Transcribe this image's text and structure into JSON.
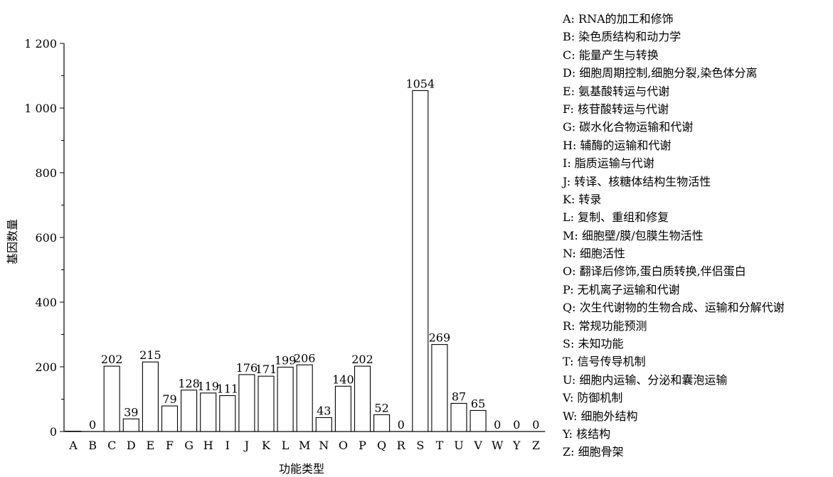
{
  "chart_data": {
    "type": "bar",
    "xlabel": "功能类型",
    "ylabel": "基因数量",
    "ylim": [
      0,
      1200
    ],
    "yticks": [
      {
        "value": 0,
        "label": "0"
      },
      {
        "value": 200,
        "label": "200"
      },
      {
        "value": 400,
        "label": "400"
      },
      {
        "value": 600,
        "label": "600"
      },
      {
        "value": 800,
        "label": "800"
      },
      {
        "value": 1000,
        "label": "1 000"
      },
      {
        "value": 1200,
        "label": "1 200"
      }
    ],
    "categories": [
      "A",
      "B",
      "C",
      "D",
      "E",
      "F",
      "G",
      "H",
      "I",
      "J",
      "K",
      "L",
      "M",
      "N",
      "O",
      "P",
      "Q",
      "R",
      "S",
      "T",
      "U",
      "V",
      "W",
      "Y",
      "Z"
    ],
    "values": [
      1,
      0,
      202,
      39,
      215,
      79,
      128,
      119,
      111,
      176,
      171,
      199,
      206,
      43,
      140,
      202,
      52,
      0,
      1054,
      269,
      87,
      65,
      0,
      0,
      0
    ],
    "data_labels": [
      "",
      "0",
      "202",
      "39",
      "215",
      "79",
      "128",
      "119",
      "111",
      "176",
      "171",
      "199",
      "206",
      "43",
      "140",
      "202",
      "52",
      "0",
      "1054",
      "269",
      "87",
      "65",
      "0",
      "0",
      "0"
    ],
    "legend": [
      "A: RNA的加工和修饰",
      "B: 染色质结构和动力学",
      "C: 能量产生与转换",
      "D: 细胞周期控制,细胞分裂,染色体分离",
      "E: 氨基酸转运与代谢",
      "F: 核苷酸转运与代谢",
      "G: 碳水化合物运输和代谢",
      "H: 辅酶的运输和代谢",
      "I: 脂质运输与代谢",
      "J: 转译、核糖体结构生物活性",
      "K: 转录",
      "L: 复制、重组和修复",
      "M: 细胞壁/膜/包膜生物活性",
      "N: 细胞活性",
      "O: 翻译后修饰,蛋白质转换,伴侣蛋白",
      "P: 无机离子运输和代谢",
      "Q: 次生代谢物的生物合成、运输和分解代谢",
      "R: 常规功能预测",
      "S: 未知功能",
      "T: 信号传导机制",
      "U: 细胞内运输、分泌和囊泡运输",
      "V: 防御机制",
      "W: 细胞外结构",
      "Y: 核结构",
      "Z: 细胞骨架"
    ],
    "legend_position": "right",
    "grid": false
  }
}
